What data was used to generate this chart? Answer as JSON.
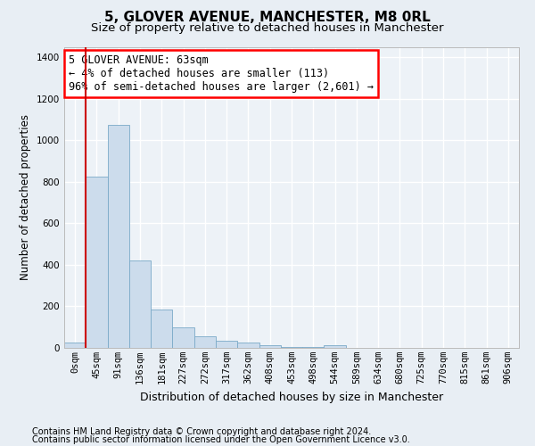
{
  "title": "5, GLOVER AVENUE, MANCHESTER, M8 0RL",
  "subtitle": "Size of property relative to detached houses in Manchester",
  "xlabel": "Distribution of detached houses by size in Manchester",
  "ylabel": "Number of detached properties",
  "bar_color": "#ccdcec",
  "bar_edge_color": "#7aaac8",
  "vline_color": "#cc0000",
  "vline_x": 0.5,
  "annotation_text": "5 GLOVER AVENUE: 63sqm\n← 4% of detached houses are smaller (113)\n96% of semi-detached houses are larger (2,601) →",
  "footer_line1": "Contains HM Land Registry data © Crown copyright and database right 2024.",
  "footer_line2": "Contains public sector information licensed under the Open Government Licence v3.0.",
  "categories": [
    "0sqm",
    "45sqm",
    "91sqm",
    "136sqm",
    "181sqm",
    "227sqm",
    "272sqm",
    "317sqm",
    "362sqm",
    "408sqm",
    "453sqm",
    "498sqm",
    "544sqm",
    "589sqm",
    "634sqm",
    "680sqm",
    "725sqm",
    "770sqm",
    "815sqm",
    "861sqm",
    "906sqm"
  ],
  "values": [
    25,
    825,
    1075,
    420,
    185,
    100,
    55,
    35,
    25,
    15,
    5,
    5,
    15,
    0,
    0,
    0,
    0,
    0,
    0,
    0,
    0
  ],
  "ylim": [
    0,
    1450
  ],
  "yticks": [
    0,
    200,
    400,
    600,
    800,
    1000,
    1200,
    1400
  ],
  "bg_color": "#e8eef4",
  "plot_bg_color": "#edf2f7",
  "grid_color": "#ffffff",
  "title_fontsize": 11,
  "subtitle_fontsize": 9.5,
  "tick_fontsize": 7.5,
  "ylabel_fontsize": 8.5,
  "xlabel_fontsize": 9,
  "footer_fontsize": 7,
  "ann_fontsize": 8.5
}
